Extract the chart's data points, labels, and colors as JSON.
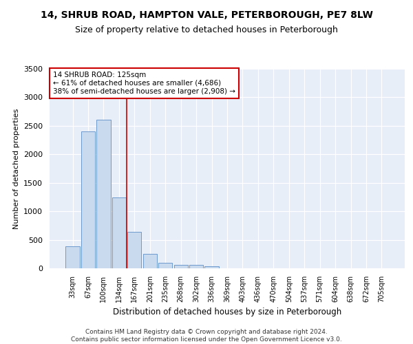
{
  "title_line1": "14, SHRUB ROAD, HAMPTON VALE, PETERBOROUGH, PE7 8LW",
  "title_line2": "Size of property relative to detached houses in Peterborough",
  "xlabel": "Distribution of detached houses by size in Peterborough",
  "ylabel": "Number of detached properties",
  "categories": [
    "33sqm",
    "67sqm",
    "100sqm",
    "134sqm",
    "167sqm",
    "201sqm",
    "235sqm",
    "268sqm",
    "302sqm",
    "336sqm",
    "369sqm",
    "403sqm",
    "436sqm",
    "470sqm",
    "504sqm",
    "537sqm",
    "571sqm",
    "604sqm",
    "638sqm",
    "672sqm",
    "705sqm"
  ],
  "values": [
    390,
    2400,
    2610,
    1240,
    640,
    255,
    95,
    60,
    55,
    35,
    0,
    0,
    0,
    0,
    0,
    0,
    0,
    0,
    0,
    0,
    0
  ],
  "bar_color": "#c9d9ee",
  "bar_edge_color": "#5b8dc8",
  "vline_x": 3.5,
  "vline_color": "#cc0000",
  "annotation_text": "14 SHRUB ROAD: 125sqm\n← 61% of detached houses are smaller (4,686)\n38% of semi-detached houses are larger (2,908) →",
  "annotation_box_color": "#ffffff",
  "annotation_box_edge": "#cc0000",
  "ylim": [
    0,
    3500
  ],
  "yticks": [
    0,
    500,
    1000,
    1500,
    2000,
    2500,
    3000,
    3500
  ],
  "footer": "Contains HM Land Registry data © Crown copyright and database right 2024.\nContains public sector information licensed under the Open Government Licence v3.0.",
  "bg_color": "#e8eef8",
  "title_fontsize": 10,
  "subtitle_fontsize": 9,
  "tick_fontsize": 7,
  "ylabel_fontsize": 8,
  "xlabel_fontsize": 8.5,
  "footer_fontsize": 6.5,
  "annotation_fontsize": 7.5
}
